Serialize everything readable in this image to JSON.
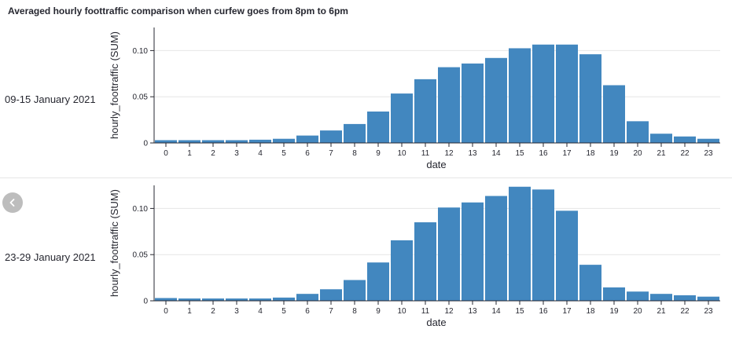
{
  "title": "Averaged hourly foottraffic comparison when curfew goes from 8pm to 6pm",
  "colors": {
    "bar": "#4287bf",
    "grid": "#e6e6e6",
    "axis": "#262730"
  },
  "icons": {
    "prev": "chevron-left-icon"
  },
  "chart_data": [
    {
      "type": "bar",
      "row_label": "09-15 January 2021",
      "xlabel": "date",
      "ylabel": "hourly_foottraffic (SUM)",
      "ylim": [
        0,
        0.125
      ],
      "yticks": [
        "0",
        "0.05",
        "0.10"
      ],
      "categories": [
        "0",
        "1",
        "2",
        "3",
        "4",
        "5",
        "6",
        "7",
        "8",
        "9",
        "10",
        "11",
        "12",
        "13",
        "14",
        "15",
        "16",
        "17",
        "18",
        "19",
        "20",
        "21",
        "22",
        "23"
      ],
      "values": [
        0.003,
        0.003,
        0.003,
        0.003,
        0.0035,
        0.0045,
        0.008,
        0.0135,
        0.0205,
        0.034,
        0.0535,
        0.069,
        0.082,
        0.086,
        0.092,
        0.1025,
        0.1065,
        0.1065,
        0.096,
        0.0625,
        0.0235,
        0.01,
        0.007,
        0.0045
      ],
      "grid": true
    },
    {
      "type": "bar",
      "row_label": "23-29 January 2021",
      "xlabel": "date",
      "ylabel": "hourly_foottraffic (SUM)",
      "ylim": [
        0,
        0.125
      ],
      "yticks": [
        "0",
        "0.05",
        "0.10"
      ],
      "categories": [
        "0",
        "1",
        "2",
        "3",
        "4",
        "5",
        "6",
        "7",
        "8",
        "9",
        "10",
        "11",
        "12",
        "13",
        "14",
        "15",
        "16",
        "17",
        "18",
        "19",
        "20",
        "21",
        "22",
        "23"
      ],
      "values": [
        0.003,
        0.0025,
        0.0025,
        0.0025,
        0.0025,
        0.0035,
        0.0075,
        0.0125,
        0.0225,
        0.0415,
        0.0655,
        0.085,
        0.101,
        0.1065,
        0.1135,
        0.1235,
        0.1205,
        0.0975,
        0.039,
        0.0145,
        0.01,
        0.0075,
        0.006,
        0.0045
      ],
      "grid": true
    }
  ]
}
